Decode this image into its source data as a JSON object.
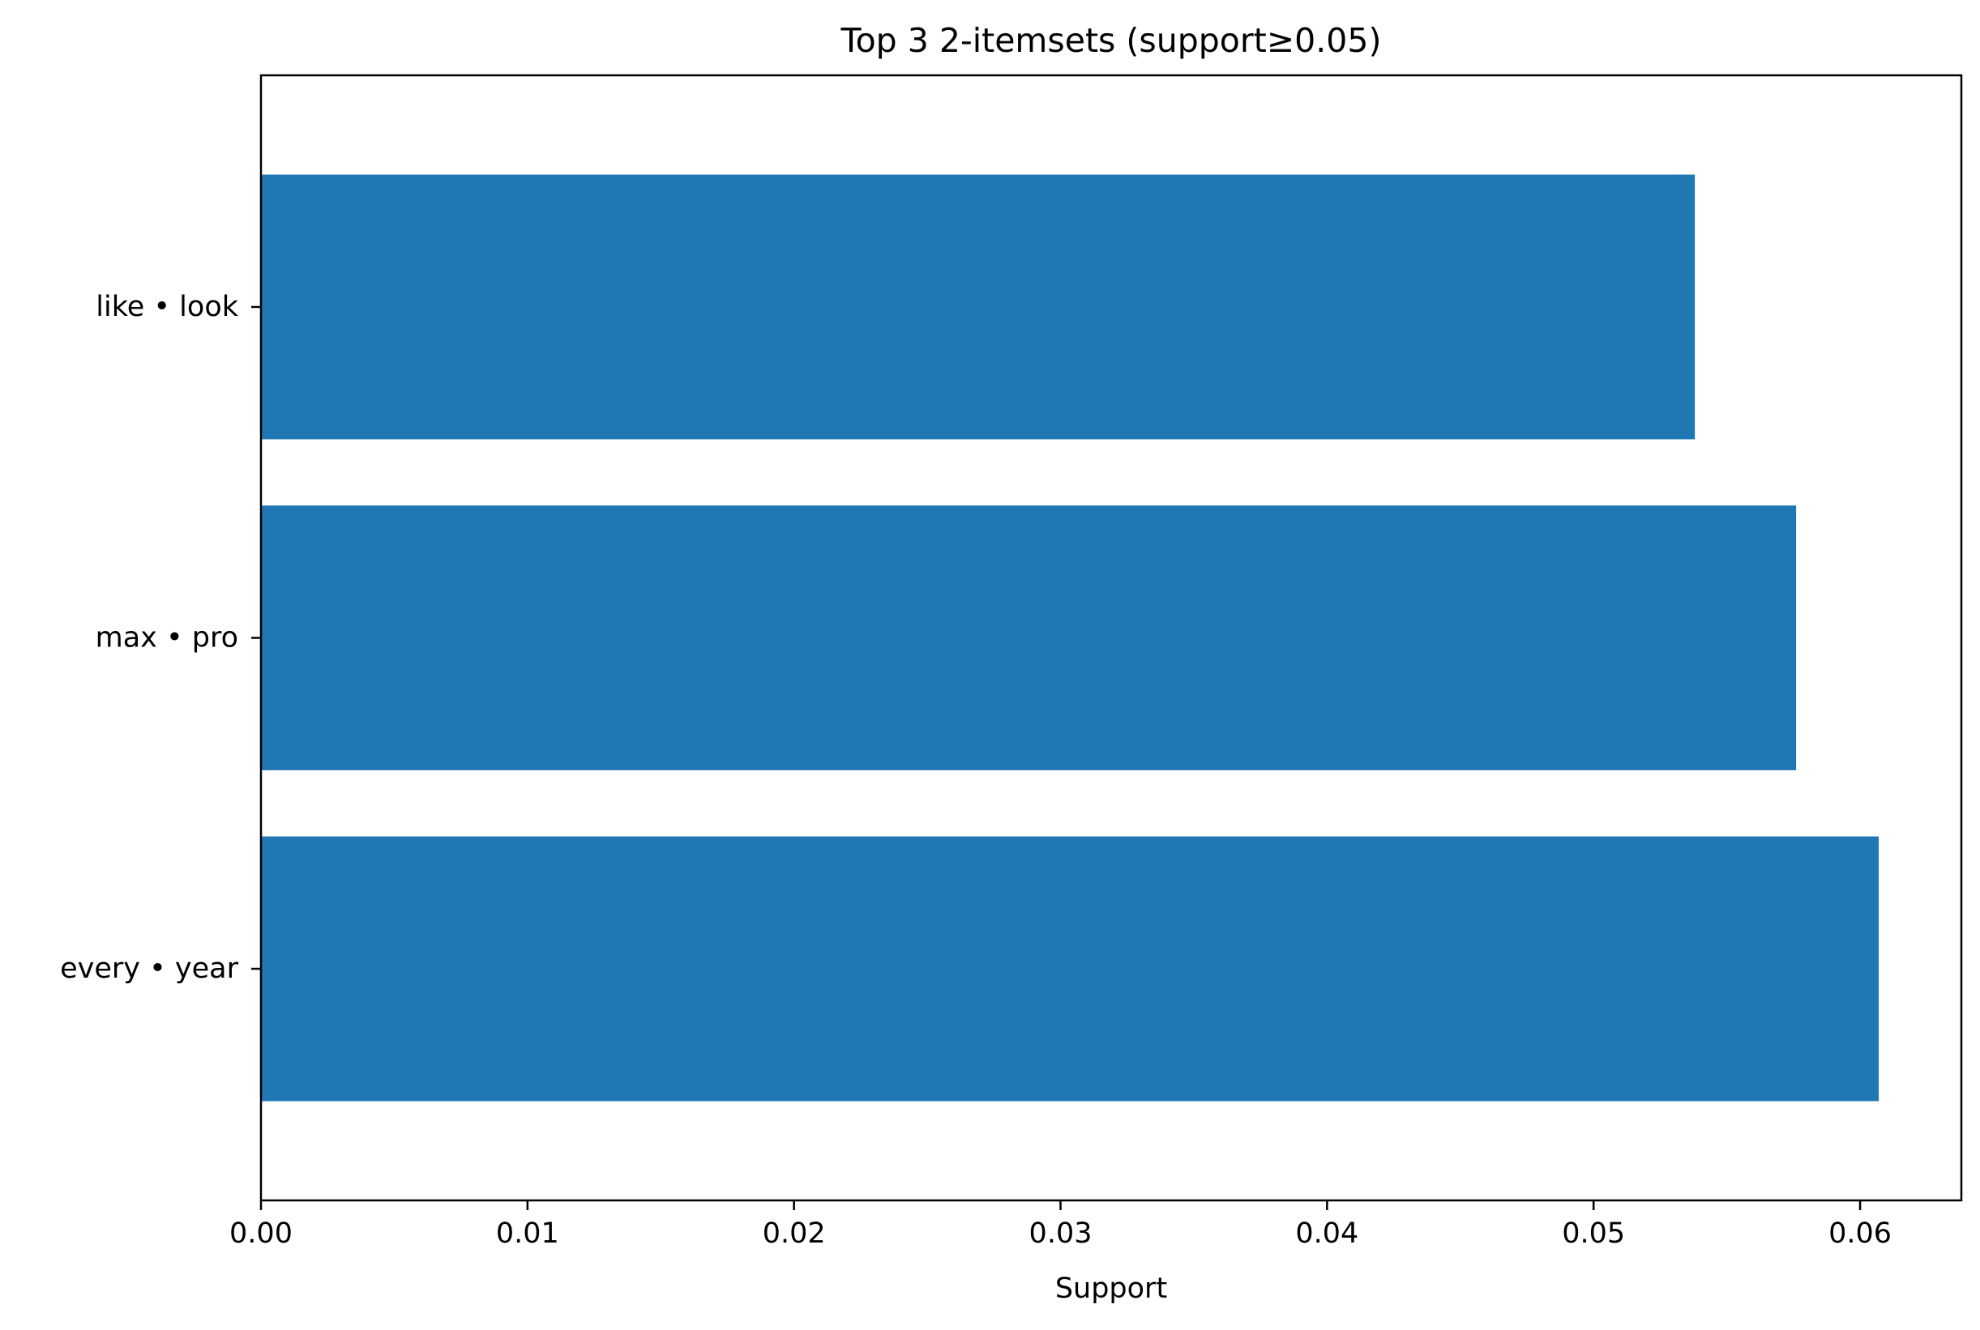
{
  "chart_data": {
    "type": "bar",
    "orientation": "horizontal",
    "title": "Top 3 2-itemsets (support≥0.05)",
    "xlabel": "Support",
    "ylabel": "",
    "categories": [
      "every • year",
      "max • pro",
      "like • look"
    ],
    "values": [
      0.0607,
      0.0576,
      0.0538
    ],
    "xlim": [
      0,
      0.0638
    ],
    "xticks": [
      0.0,
      0.01,
      0.02,
      0.03,
      0.04,
      0.05,
      0.06
    ],
    "xtick_labels": [
      "0.00",
      "0.01",
      "0.02",
      "0.03",
      "0.04",
      "0.05",
      "0.06"
    ],
    "grid": false,
    "legend": "none",
    "bar_color": "#1f77b4"
  }
}
